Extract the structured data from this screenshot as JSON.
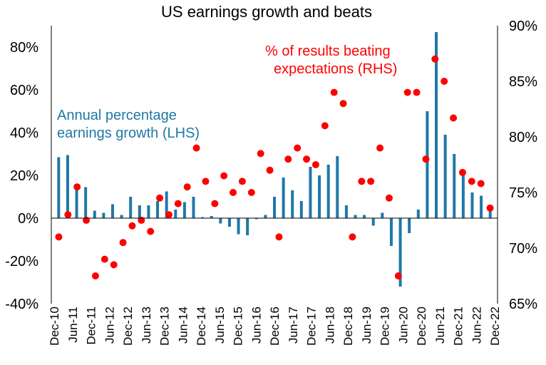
{
  "chart_data": {
    "type": "bar",
    "title": "US earnings growth and beats",
    "y_left": {
      "min": -40,
      "max": 90,
      "ticks": [
        -40,
        -20,
        0,
        20,
        40,
        60,
        80
      ],
      "tick_labels": [
        "-40%",
        "-20%",
        "0%",
        "20%",
        "40%",
        "60%",
        "80%"
      ]
    },
    "y_right": {
      "min": 65,
      "max": 90,
      "ticks": [
        65,
        70,
        75,
        80,
        85,
        90
      ],
      "tick_labels": [
        "65%",
        "70%",
        "75%",
        "80%",
        "85%",
        "90%"
      ]
    },
    "x_ticks": [
      "Dec-10",
      "Jun-11",
      "Dec-11",
      "Jun-12",
      "Dec-12",
      "Jun-13",
      "Dec-13",
      "Jun-14",
      "Dec-14",
      "Jun-15",
      "Dec-15",
      "Jun-16",
      "Dec-16",
      "Jun-17",
      "Dec-17",
      "Jun-18",
      "Dec-18",
      "Jun-19",
      "Dec-19",
      "Jun-20",
      "Dec-20",
      "Jun-21",
      "Dec-21",
      "Jun-22",
      "Dec-22"
    ],
    "series": [
      {
        "name": "Annual percentage earnings growth (LHS)",
        "type": "bar",
        "axis": "left",
        "color": "#1f78a6",
        "values": [
          28.5,
          29.5,
          14,
          14.5,
          3.5,
          2.5,
          6.5,
          1.5,
          10,
          6,
          6,
          8,
          12.5,
          4,
          7.5,
          10,
          0.5,
          1,
          -2.5,
          -4,
          -7.5,
          -8,
          -0.5,
          1.5,
          10,
          19,
          13,
          8,
          24,
          20,
          25,
          29,
          6,
          1.5,
          1.5,
          -3.5,
          2.5,
          -13,
          -32,
          -7,
          4,
          50,
          87,
          39,
          30,
          21,
          12,
          10.5,
          4.5
        ]
      },
      {
        "name": "% of results beating expectations (RHS)",
        "type": "scatter",
        "axis": "right",
        "color": "#ff0000",
        "values": [
          71,
          73,
          75.5,
          72.5,
          67.5,
          69,
          68.5,
          70.5,
          72,
          72.5,
          71.5,
          74.5,
          73,
          74,
          75.5,
          79,
          76,
          74,
          76.5,
          75,
          76,
          75,
          78.5,
          77,
          71,
          78,
          79,
          78,
          77.5,
          81,
          84,
          83,
          71,
          76,
          76,
          79,
          74.5,
          67.5,
          84,
          84,
          78,
          87,
          85,
          81.7,
          76.8,
          76,
          75.8,
          73.6
        ]
      }
    ]
  },
  "annotations": {
    "lhs_line1": "Annual percentage",
    "lhs_line2": "earnings growth (LHS)",
    "rhs_line1": "% of results beating",
    "rhs_line2": "expectations (RHS)"
  },
  "colors": {
    "bar": "#1f78a6",
    "dot": "#ff0000",
    "axis": "#000000"
  }
}
